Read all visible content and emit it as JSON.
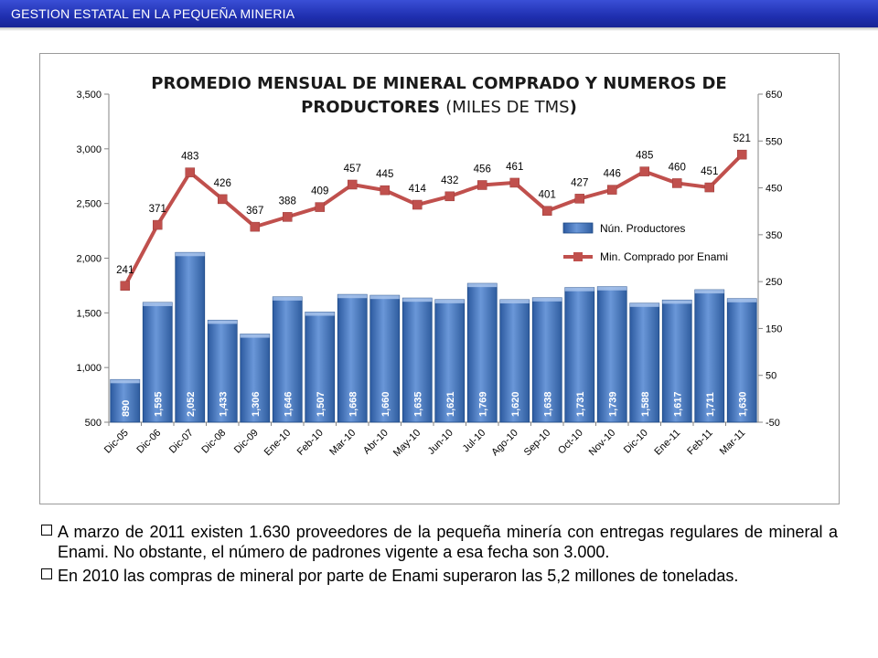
{
  "header": {
    "title": "GESTION  ESTATAL EN LA PEQUEÑA MINERIA"
  },
  "chart_data": {
    "type": "bar+line",
    "title_bold": "PROMEDIO MENSUAL DE MINERAL COMPRADO Y NUMEROS DE PRODUCTORES",
    "title_normal": "(MILES DE TMS)",
    "title_close": ")",
    "categories": [
      "Dic-05",
      "Dic-06",
      "Dic-07",
      "Dic-08",
      "Dic-09",
      "Ene-10",
      "Feb-10",
      "Mar-10",
      "Abr-10",
      "May-10",
      "Jun-10",
      "Jul-10",
      "Ago-10",
      "Sep-10",
      "Oct-10",
      "Nov-10",
      "Dic-10",
      "Ene-11",
      "Feb-11",
      "Mar-11"
    ],
    "series": [
      {
        "name": "Nún. Productores",
        "type": "bar",
        "axis": "left",
        "values": [
          890,
          1595,
          2052,
          1433,
          1306,
          1646,
          1507,
          1668,
          1660,
          1635,
          1621,
          1769,
          1620,
          1638,
          1731,
          1739,
          1588,
          1617,
          1711,
          1630
        ],
        "labels": [
          "890",
          "1,595",
          "2,052",
          "1,433",
          "1,306",
          "1,646",
          "1,507",
          "1,668",
          "1,660",
          "1,635",
          "1,621",
          "1,769",
          "1,620",
          "1,638",
          "1,731",
          "1,739",
          "1,588",
          "1,617",
          "1,711",
          "1,630"
        ],
        "color": "#4f7fc7"
      },
      {
        "name": "Min. Comprado por Enami",
        "type": "line",
        "axis": "right",
        "values": [
          241,
          371,
          483,
          426,
          367,
          388,
          409,
          457,
          445,
          414,
          432,
          456,
          461,
          401,
          427,
          446,
          485,
          460,
          451,
          521
        ],
        "color": "#c0504d"
      }
    ],
    "y_left": {
      "ylim": [
        500,
        3500
      ],
      "ticks": [
        "500",
        "1,000",
        "1,500",
        "2,000",
        "2,500",
        "3,000",
        "3,500"
      ]
    },
    "y_right": {
      "ylim": [
        -50,
        650
      ],
      "ticks": [
        "-50",
        "50",
        "150",
        "250",
        "350",
        "450",
        "550",
        "650"
      ]
    },
    "legend": "right-middle",
    "grid": false
  },
  "notes": [
    "A marzo de 2011 existen 1.630 proveedores de la pequeña minería con entregas regulares de mineral a Enami. No obstante, el número de padrones vigente a esa fecha son 3.000.",
    "En 2010 las compras de mineral por parte de Enami superaron las 5,2 millones de toneladas."
  ]
}
